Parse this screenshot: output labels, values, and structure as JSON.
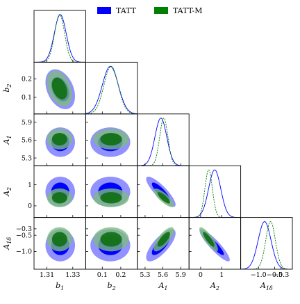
{
  "chart_data": {
    "type": "corner",
    "parameters": [
      {
        "name": "b1",
        "label": "b",
        "sub": "1",
        "range": [
          1.3,
          1.34
        ],
        "ticks": [
          1.31,
          1.33
        ],
        "tick_labels": [
          "1.31",
          "1.33"
        ]
      },
      {
        "name": "b2",
        "label": "b",
        "sub": "2",
        "range": [
          0.01,
          0.29
        ],
        "ticks": [
          0.1,
          0.2
        ],
        "tick_labels": [
          "0.1",
          "0.2"
        ]
      },
      {
        "name": "A1",
        "label": "A",
        "sub": "1",
        "range": [
          5.17,
          6.04
        ],
        "ticks": [
          5.3,
          5.6,
          5.9
        ],
        "tick_labels": [
          "5.3",
          "5.6",
          "5.9"
        ]
      },
      {
        "name": "A2",
        "label": "A",
        "sub": "2",
        "range": [
          -0.55,
          1.9
        ],
        "ticks": [
          0,
          1
        ],
        "tick_labels": [
          "0",
          "1"
        ]
      },
      {
        "name": "A1delta",
        "label": "A",
        "sub": "1δ",
        "range": [
          -1.55,
          0.05
        ],
        "ticks": [
          -1.0,
          -0.5,
          -0.3
        ],
        "tick_labels": [
          "−1.0",
          "−0.5",
          "−0.3"
        ]
      }
    ],
    "series": [
      {
        "name": "TATT",
        "color": "#0000ff",
        "mean": [
          1.3203,
          0.1435,
          5.5658,
          0.666,
          -0.81
        ],
        "sigma": [
          0.0046,
          0.0434,
          0.0997,
          0.2877,
          0.2
        ],
        "corr": {
          "0-1": -0.35,
          "2-3": -0.85,
          "2-4": 0.75,
          "3-4": -0.9
        }
      },
      {
        "name": "TATT-M",
        "color": "#008000",
        "mean": [
          1.3198,
          0.1477,
          5.6151,
          0.3808,
          -0.625
        ],
        "sigma": [
          0.0039,
          0.0387,
          0.0693,
          0.1775,
          0.15
        ],
        "corr": {
          "0-1": -0.35,
          "2-3": -0.8,
          "2-4": 0.75,
          "3-4": -0.85
        }
      }
    ],
    "legend": {
      "position": "top-right",
      "entries": [
        "TATT",
        "TATT-M"
      ]
    },
    "contours": [
      "68%",
      "95%"
    ]
  }
}
